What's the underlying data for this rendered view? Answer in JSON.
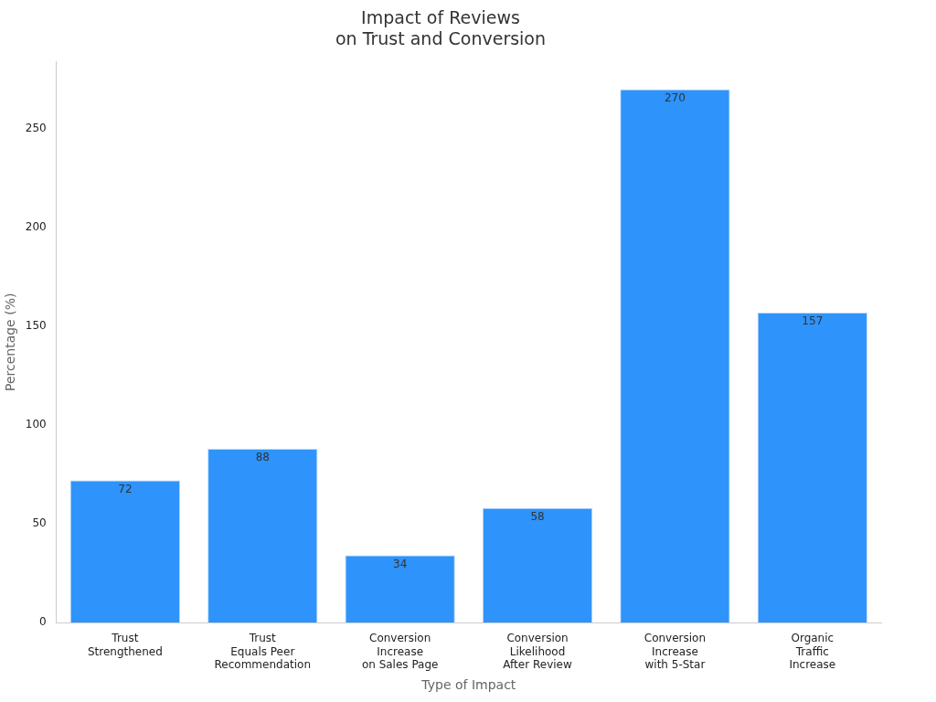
{
  "chart_data": {
    "type": "bar",
    "title": "Impact of Reviews\non Trust and Conversion",
    "xlabel": "Type of Impact",
    "ylabel": "Percentage (%)",
    "categories": [
      "Trust\nStrengthened",
      "Trust\nEquals Peer\nRecommendation",
      "Conversion\nIncrease\non Sales Page",
      "Conversion\nLikelihood\nAfter Review",
      "Conversion\nIncrease\nwith 5-Star",
      "Organic\nTraffic\nIncrease"
    ],
    "values": [
      72,
      88,
      34,
      58,
      270,
      157
    ],
    "color": "#2e93fa",
    "ylim": [
      0,
      284
    ],
    "yticks": [
      0,
      50,
      100,
      150,
      200,
      250
    ],
    "grid": false,
    "legend": false,
    "data_labels": true
  }
}
